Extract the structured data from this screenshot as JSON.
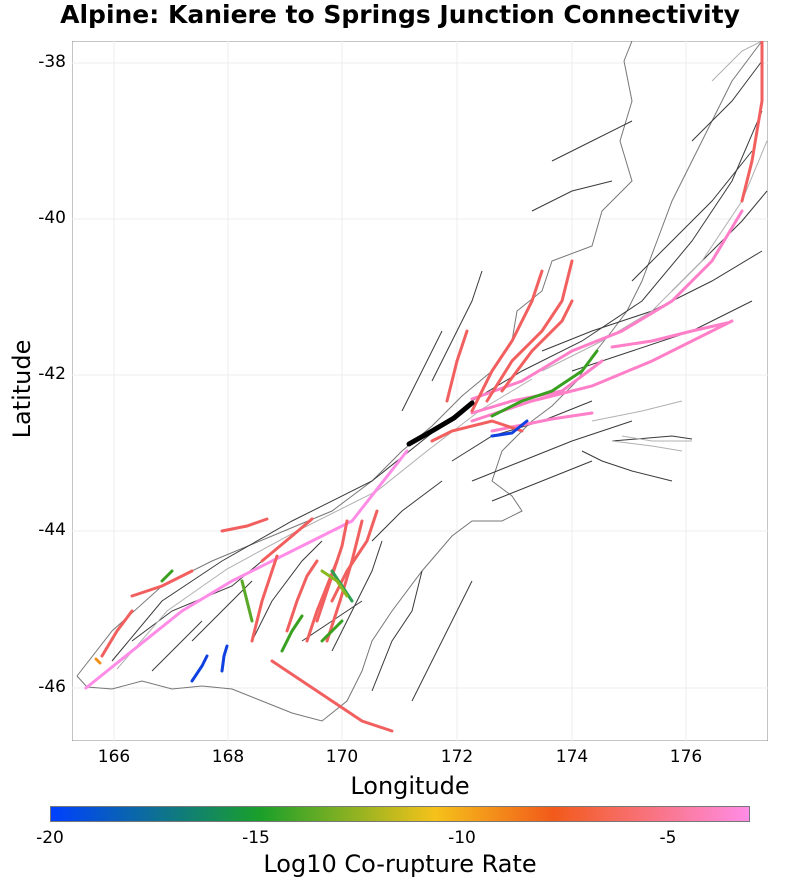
{
  "title": "Alpine: Kaniere to Springs Junction Connectivity",
  "xlabel": "Longitude",
  "ylabel": "Latitude",
  "x_ticks": [
    "166",
    "168",
    "170",
    "172",
    "174",
    "176"
  ],
  "y_ticks": [
    "-38",
    "-40",
    "-42",
    "-44",
    "-46"
  ],
  "colorbar": {
    "title": "Log10 Co-rupture Rate",
    "ticks": [
      "-20",
      "-15",
      "-10",
      "-5"
    ],
    "range": [
      -20,
      -3
    ],
    "colors": [
      "#0040ff",
      "#1aa02a",
      "#f5c21a",
      "#f25a1a",
      "#ff8ce6"
    ]
  },
  "map": {
    "x_range": [
      165.3,
      177.3
    ],
    "y_range": [
      -46.7,
      -37.7
    ],
    "selected_color": "#000000"
  }
}
